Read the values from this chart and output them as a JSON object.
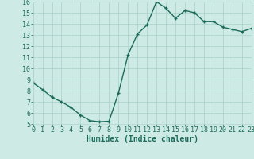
{
  "xlabel": "Humidex (Indice chaleur)",
  "ylabel": "",
  "x": [
    0,
    1,
    2,
    3,
    4,
    5,
    6,
    7,
    8,
    9,
    10,
    11,
    12,
    13,
    14,
    15,
    16,
    17,
    18,
    19,
    20,
    21,
    22,
    23
  ],
  "y": [
    8.7,
    8.1,
    7.4,
    7.0,
    6.5,
    5.8,
    5.3,
    5.2,
    5.25,
    7.8,
    11.2,
    13.1,
    13.9,
    16.0,
    15.4,
    14.5,
    15.2,
    15.0,
    14.2,
    14.2,
    13.7,
    13.5,
    13.3,
    13.6
  ],
  "line_color": "#1a6b5a",
  "marker": "+",
  "marker_size": 3.5,
  "line_width": 1.0,
  "bg_color": "#ceeae5",
  "grid_color": "#aed4ce",
  "tick_color": "#1a6b5a",
  "label_color": "#1a6b5a",
  "ylim": [
    5,
    16
  ],
  "xlim": [
    0,
    23
  ],
  "yticks": [
    5,
    6,
    7,
    8,
    9,
    10,
    11,
    12,
    13,
    14,
    15,
    16
  ],
  "xticks": [
    0,
    1,
    2,
    3,
    4,
    5,
    6,
    7,
    8,
    9,
    10,
    11,
    12,
    13,
    14,
    15,
    16,
    17,
    18,
    19,
    20,
    21,
    22,
    23
  ],
  "xlabel_fontsize": 7.0,
  "tick_fontsize": 6.0,
  "ylabel_fontsize": 6.0
}
